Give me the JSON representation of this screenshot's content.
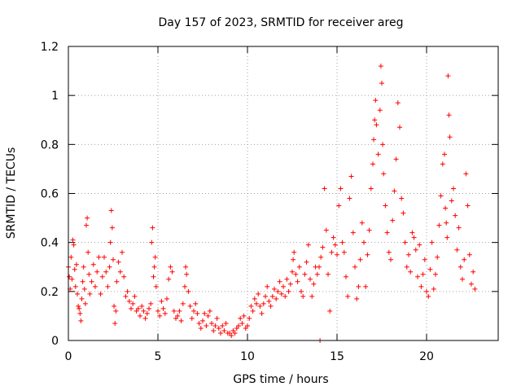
{
  "chart_data": {
    "type": "scatter",
    "title": "Day 157 of 2023, SRMTID for receiver areg",
    "xlabel": "GPS time / hours",
    "ylabel": "SRMTID / TECUs",
    "xlim": [
      0,
      24
    ],
    "ylim": [
      0,
      1.2
    ],
    "xticks": [
      0,
      5,
      10,
      15,
      20
    ],
    "xtick_labels": [
      "0",
      "5",
      "10",
      "15",
      "20"
    ],
    "yticks": [
      0,
      0.2,
      0.4,
      0.6,
      0.8,
      1.0,
      1.2
    ],
    "ytick_labels": [
      "0",
      "0.2",
      "0.4",
      "0.6",
      "0.8",
      "1",
      "1.2"
    ],
    "grid": true,
    "marker": "+",
    "marker_color": "#ff0000",
    "series": [
      {
        "name": "SRMTID",
        "points": [
          [
            0.0,
            0.3
          ],
          [
            0.05,
            0.26
          ],
          [
            0.1,
            0.21
          ],
          [
            0.15,
            0.34
          ],
          [
            0.2,
            0.25
          ],
          [
            0.25,
            0.41
          ],
          [
            0.3,
            0.39
          ],
          [
            0.35,
            0.29
          ],
          [
            0.4,
            0.22
          ],
          [
            0.45,
            0.31
          ],
          [
            0.5,
            0.19
          ],
          [
            0.55,
            0.14
          ],
          [
            0.6,
            0.13
          ],
          [
            0.65,
            0.11
          ],
          [
            0.7,
            0.08
          ],
          [
            0.75,
            0.17
          ],
          [
            0.8,
            0.24
          ],
          [
            0.85,
            0.3
          ],
          [
            0.9,
            0.21
          ],
          [
            0.95,
            0.15
          ],
          [
            1.0,
            0.47
          ],
          [
            1.05,
            0.5
          ],
          [
            1.1,
            0.36
          ],
          [
            1.15,
            0.27
          ],
          [
            1.2,
            0.19
          ],
          [
            1.3,
            0.24
          ],
          [
            1.4,
            0.31
          ],
          [
            1.5,
            0.22
          ],
          [
            1.6,
            0.28
          ],
          [
            1.7,
            0.34
          ],
          [
            1.8,
            0.19
          ],
          [
            1.9,
            0.26
          ],
          [
            2.0,
            0.34
          ],
          [
            2.1,
            0.28
          ],
          [
            2.2,
            0.22
          ],
          [
            2.3,
            0.3
          ],
          [
            2.35,
            0.4
          ],
          [
            2.4,
            0.53
          ],
          [
            2.45,
            0.46
          ],
          [
            2.5,
            0.33
          ],
          [
            2.55,
            0.14
          ],
          [
            2.6,
            0.07
          ],
          [
            2.65,
            0.12
          ],
          [
            2.7,
            0.24
          ],
          [
            2.8,
            0.32
          ],
          [
            2.9,
            0.28
          ],
          [
            3.0,
            0.36
          ],
          [
            3.1,
            0.26
          ],
          [
            3.2,
            0.18
          ],
          [
            3.3,
            0.2
          ],
          [
            3.4,
            0.16
          ],
          [
            3.5,
            0.13
          ],
          [
            3.6,
            0.15
          ],
          [
            3.7,
            0.18
          ],
          [
            3.8,
            0.12
          ],
          [
            3.9,
            0.13
          ],
          [
            4.0,
            0.1
          ],
          [
            4.1,
            0.14
          ],
          [
            4.2,
            0.12
          ],
          [
            4.3,
            0.09
          ],
          [
            4.4,
            0.11
          ],
          [
            4.5,
            0.13
          ],
          [
            4.6,
            0.15
          ],
          [
            4.65,
            0.4
          ],
          [
            4.7,
            0.46
          ],
          [
            4.75,
            0.26
          ],
          [
            4.8,
            0.3
          ],
          [
            4.85,
            0.34
          ],
          [
            4.9,
            0.22
          ],
          [
            5.0,
            0.12
          ],
          [
            5.1,
            0.1
          ],
          [
            5.2,
            0.16
          ],
          [
            5.3,
            0.13
          ],
          [
            5.4,
            0.11
          ],
          [
            5.5,
            0.17
          ],
          [
            5.6,
            0.25
          ],
          [
            5.7,
            0.3
          ],
          [
            5.8,
            0.28
          ],
          [
            5.9,
            0.12
          ],
          [
            6.0,
            0.09
          ],
          [
            6.1,
            0.1
          ],
          [
            6.2,
            0.12
          ],
          [
            6.3,
            0.08
          ],
          [
            6.4,
            0.15
          ],
          [
            6.5,
            0.22
          ],
          [
            6.55,
            0.3
          ],
          [
            6.6,
            0.27
          ],
          [
            6.7,
            0.2
          ],
          [
            6.8,
            0.14
          ],
          [
            6.9,
            0.09
          ],
          [
            7.0,
            0.12
          ],
          [
            7.1,
            0.15
          ],
          [
            7.2,
            0.11
          ],
          [
            7.3,
            0.07
          ],
          [
            7.4,
            0.05
          ],
          [
            7.5,
            0.08
          ],
          [
            7.6,
            0.11
          ],
          [
            7.7,
            0.06
          ],
          [
            7.8,
            0.1
          ],
          [
            7.9,
            0.12
          ],
          [
            8.0,
            0.07
          ],
          [
            8.1,
            0.04
          ],
          [
            8.2,
            0.06
          ],
          [
            8.3,
            0.09
          ],
          [
            8.4,
            0.05
          ],
          [
            8.5,
            0.03
          ],
          [
            8.6,
            0.06
          ],
          [
            8.7,
            0.04
          ],
          [
            8.8,
            0.07
          ],
          [
            8.9,
            0.03
          ],
          [
            9.0,
            0.03
          ],
          [
            9.1,
            0.02
          ],
          [
            9.2,
            0.04
          ],
          [
            9.3,
            0.03
          ],
          [
            9.4,
            0.05
          ],
          [
            9.5,
            0.06
          ],
          [
            9.6,
            0.09
          ],
          [
            9.7,
            0.07
          ],
          [
            9.8,
            0.1
          ],
          [
            9.9,
            0.05
          ],
          [
            10.0,
            0.06
          ],
          [
            10.1,
            0.09
          ],
          [
            10.2,
            0.14
          ],
          [
            10.3,
            0.12
          ],
          [
            10.4,
            0.17
          ],
          [
            10.5,
            0.15
          ],
          [
            10.6,
            0.19
          ],
          [
            10.7,
            0.14
          ],
          [
            10.8,
            0.11
          ],
          [
            10.9,
            0.15
          ],
          [
            11.0,
            0.18
          ],
          [
            11.1,
            0.22
          ],
          [
            11.2,
            0.16
          ],
          [
            11.3,
            0.14
          ],
          [
            11.4,
            0.18
          ],
          [
            11.5,
            0.21
          ],
          [
            11.6,
            0.17
          ],
          [
            11.7,
            0.2
          ],
          [
            11.8,
            0.24
          ],
          [
            11.9,
            0.19
          ],
          [
            12.0,
            0.22
          ],
          [
            12.1,
            0.18
          ],
          [
            12.2,
            0.25
          ],
          [
            12.3,
            0.2
          ],
          [
            12.4,
            0.23
          ],
          [
            12.5,
            0.28
          ],
          [
            12.55,
            0.33
          ],
          [
            12.6,
            0.36
          ],
          [
            12.7,
            0.27
          ],
          [
            12.8,
            0.24
          ],
          [
            12.9,
            0.3
          ],
          [
            13.0,
            0.2
          ],
          [
            13.1,
            0.18
          ],
          [
            13.2,
            0.27
          ],
          [
            13.3,
            0.32
          ],
          [
            13.4,
            0.39
          ],
          [
            13.5,
            0.25
          ],
          [
            13.6,
            0.18
          ],
          [
            13.7,
            0.23
          ],
          [
            13.8,
            0.3
          ],
          [
            13.9,
            0.27
          ],
          [
            14.0,
            0.3
          ],
          [
            14.05,
            0.0
          ],
          [
            14.1,
            0.34
          ],
          [
            14.2,
            0.38
          ],
          [
            14.3,
            0.62
          ],
          [
            14.4,
            0.45
          ],
          [
            14.5,
            0.27
          ],
          [
            14.6,
            0.12
          ],
          [
            14.7,
            0.36
          ],
          [
            14.8,
            0.42
          ],
          [
            14.9,
            0.39
          ],
          [
            15.0,
            0.35
          ],
          [
            15.1,
            0.55
          ],
          [
            15.2,
            0.62
          ],
          [
            15.3,
            0.4
          ],
          [
            15.4,
            0.36
          ],
          [
            15.5,
            0.26
          ],
          [
            15.6,
            0.18
          ],
          [
            15.7,
            0.58
          ],
          [
            15.8,
            0.67
          ],
          [
            15.9,
            0.44
          ],
          [
            16.0,
            0.3
          ],
          [
            16.1,
            0.17
          ],
          [
            16.2,
            0.22
          ],
          [
            16.3,
            0.33
          ],
          [
            16.4,
            0.48
          ],
          [
            16.5,
            0.4
          ],
          [
            16.6,
            0.22
          ],
          [
            16.7,
            0.35
          ],
          [
            16.8,
            0.45
          ],
          [
            16.9,
            0.62
          ],
          [
            17.0,
            0.72
          ],
          [
            17.05,
            0.82
          ],
          [
            17.1,
            0.9
          ],
          [
            17.15,
            0.98
          ],
          [
            17.2,
            0.88
          ],
          [
            17.3,
            0.76
          ],
          [
            17.4,
            0.94
          ],
          [
            17.45,
            1.12
          ],
          [
            17.5,
            1.05
          ],
          [
            17.55,
            0.8
          ],
          [
            17.6,
            0.68
          ],
          [
            17.7,
            0.55
          ],
          [
            17.8,
            0.44
          ],
          [
            17.9,
            0.36
          ],
          [
            18.0,
            0.33
          ],
          [
            18.1,
            0.49
          ],
          [
            18.2,
            0.61
          ],
          [
            18.3,
            0.74
          ],
          [
            18.4,
            0.97
          ],
          [
            18.5,
            0.87
          ],
          [
            18.6,
            0.58
          ],
          [
            18.7,
            0.52
          ],
          [
            18.8,
            0.4
          ],
          [
            18.9,
            0.3
          ],
          [
            19.0,
            0.35
          ],
          [
            19.1,
            0.28
          ],
          [
            19.2,
            0.44
          ],
          [
            19.3,
            0.42
          ],
          [
            19.4,
            0.37
          ],
          [
            19.5,
            0.26
          ],
          [
            19.6,
            0.39
          ],
          [
            19.7,
            0.22
          ],
          [
            19.8,
            0.27
          ],
          [
            19.9,
            0.33
          ],
          [
            20.0,
            0.2
          ],
          [
            20.1,
            0.18
          ],
          [
            20.2,
            0.29
          ],
          [
            20.3,
            0.4
          ],
          [
            20.4,
            0.21
          ],
          [
            20.5,
            0.27
          ],
          [
            20.6,
            0.34
          ],
          [
            20.7,
            0.47
          ],
          [
            20.8,
            0.59
          ],
          [
            20.9,
            0.72
          ],
          [
            21.0,
            0.76
          ],
          [
            21.05,
            0.54
          ],
          [
            21.1,
            0.48
          ],
          [
            21.15,
            0.42
          ],
          [
            21.2,
            1.08
          ],
          [
            21.25,
            0.92
          ],
          [
            21.3,
            0.83
          ],
          [
            21.4,
            0.57
          ],
          [
            21.5,
            0.62
          ],
          [
            21.6,
            0.51
          ],
          [
            21.7,
            0.37
          ],
          [
            21.8,
            0.46
          ],
          [
            21.9,
            0.3
          ],
          [
            22.0,
            0.25
          ],
          [
            22.1,
            0.33
          ],
          [
            22.2,
            0.68
          ],
          [
            22.3,
            0.55
          ],
          [
            22.4,
            0.35
          ],
          [
            22.5,
            0.23
          ],
          [
            22.6,
            0.28
          ],
          [
            22.7,
            0.21
          ]
        ]
      }
    ]
  }
}
